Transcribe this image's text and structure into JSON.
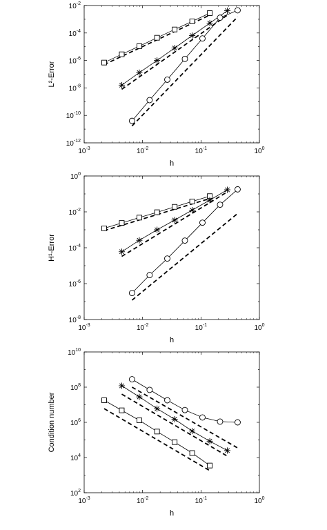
{
  "chart_data": [
    {
      "type": "line",
      "xscale": "log",
      "yscale": "log",
      "xlabel": "h",
      "ylabel": "L²-Error",
      "xlim": [
        0.001,
        1
      ],
      "ylim": [
        1e-12,
        0.01
      ],
      "xticks": [
        {
          "value": 0.001,
          "base": "10",
          "exp": "-3"
        },
        {
          "value": 0.01,
          "base": "10",
          "exp": "-2"
        },
        {
          "value": 0.1,
          "base": "10",
          "exp": "-1"
        },
        {
          "value": 1,
          "base": "10",
          "exp": "0"
        }
      ],
      "yticks": [
        {
          "value": 1e-12,
          "base": "10",
          "exp": "-12"
        },
        {
          "value": 1e-10,
          "base": "10",
          "exp": "-10"
        },
        {
          "value": 1e-08,
          "base": "10",
          "exp": "-8"
        },
        {
          "value": 1e-06,
          "base": "10",
          "exp": "-6"
        },
        {
          "value": 0.0001,
          "base": "10",
          "exp": "-4"
        },
        {
          "value": 0.01,
          "base": "10",
          "exp": "-2"
        }
      ],
      "series": [
        {
          "marker": "square",
          "x": [
            0.0022,
            0.0044,
            0.0088,
            0.0177,
            0.0354,
            0.0707,
            0.1414
          ],
          "y": [
            7e-07,
            2.8e-06,
            1.1e-05,
            4.5e-05,
            0.00018,
            0.0007,
            0.0028
          ]
        },
        {
          "marker": "asterisk",
          "x": [
            0.0044,
            0.0088,
            0.0177,
            0.0354,
            0.0707,
            0.1414,
            0.2828
          ],
          "y": [
            1.6e-08,
            1.3e-07,
            1e-06,
            8e-06,
            6.5e-05,
            0.00052,
            0.0042
          ]
        },
        {
          "marker": "circle",
          "x": [
            0.0066,
            0.0132,
            0.0265,
            0.053,
            0.106,
            0.212,
            0.424
          ],
          "y": [
            4e-11,
            1.3e-09,
            4e-08,
            1.3e-06,
            4e-05,
            0.0013,
            0.0045
          ]
        }
      ],
      "reference_lines": [
        {
          "x": [
            0.0022,
            0.1414
          ],
          "y": [
            5e-07,
            0.002
          ]
        },
        {
          "x": [
            0.0044,
            0.2828
          ],
          "y": [
            8e-09,
            0.002
          ]
        },
        {
          "x": [
            0.0066,
            0.424
          ],
          "y": [
            1.7e-11,
            0.0015
          ]
        }
      ]
    },
    {
      "type": "line",
      "xscale": "log",
      "yscale": "log",
      "xlabel": "h",
      "ylabel": "H¹-Error",
      "xlim": [
        0.001,
        1
      ],
      "ylim": [
        1e-08,
        1
      ],
      "xticks": [
        {
          "value": 0.001,
          "base": "10",
          "exp": "-3"
        },
        {
          "value": 0.01,
          "base": "10",
          "exp": "-2"
        },
        {
          "value": 0.1,
          "base": "10",
          "exp": "-1"
        },
        {
          "value": 1,
          "base": "10",
          "exp": "0"
        }
      ],
      "yticks": [
        {
          "value": 1e-08,
          "base": "10",
          "exp": "-8"
        },
        {
          "value": 1e-06,
          "base": "10",
          "exp": "-6"
        },
        {
          "value": 0.0001,
          "base": "10",
          "exp": "-4"
        },
        {
          "value": 0.01,
          "base": "10",
          "exp": "-2"
        },
        {
          "value": 1,
          "base": "10",
          "exp": "0"
        }
      ],
      "series": [
        {
          "marker": "square",
          "x": [
            0.0022,
            0.0044,
            0.0088,
            0.0177,
            0.0354,
            0.0707,
            0.1414
          ],
          "y": [
            0.0012,
            0.0024,
            0.0048,
            0.0095,
            0.019,
            0.038,
            0.075
          ]
        },
        {
          "marker": "asterisk",
          "x": [
            0.0044,
            0.0088,
            0.0177,
            0.0354,
            0.0707,
            0.1414,
            0.2828
          ],
          "y": [
            6e-05,
            0.00026,
            0.001,
            0.0035,
            0.0125,
            0.045,
            0.17
          ]
        },
        {
          "marker": "circle",
          "x": [
            0.0066,
            0.0132,
            0.0265,
            0.053,
            0.106,
            0.212,
            0.424
          ],
          "y": [
            3e-07,
            3e-06,
            2.5e-05,
            0.00025,
            0.0025,
            0.025,
            0.18
          ]
        }
      ],
      "reference_lines": [
        {
          "x": [
            0.0022,
            0.1414
          ],
          "y": [
            0.0009,
            0.055
          ]
        },
        {
          "x": [
            0.0044,
            0.2828
          ],
          "y": [
            3.3e-05,
            0.13
          ]
        },
        {
          "x": [
            0.0066,
            0.424
          ],
          "y": [
            1.2e-07,
            0.0081
          ]
        }
      ]
    },
    {
      "type": "line",
      "xscale": "log",
      "yscale": "log",
      "xlabel": "h",
      "ylabel": "Condition number",
      "xlim": [
        0.001,
        1
      ],
      "ylim": [
        100,
        10000000000
      ],
      "xticks": [
        {
          "value": 0.001,
          "base": "10",
          "exp": "-3"
        },
        {
          "value": 0.01,
          "base": "10",
          "exp": "-2"
        },
        {
          "value": 0.1,
          "base": "10",
          "exp": "-1"
        },
        {
          "value": 1,
          "base": "10",
          "exp": "0"
        }
      ],
      "yticks": [
        {
          "value": 100,
          "base": "10",
          "exp": "2"
        },
        {
          "value": 10000,
          "base": "10",
          "exp": "4"
        },
        {
          "value": 1000000,
          "base": "10",
          "exp": "6"
        },
        {
          "value": 100000000,
          "base": "10",
          "exp": "8"
        },
        {
          "value": 10000000000,
          "base": "10",
          "exp": "10"
        }
      ],
      "series": [
        {
          "marker": "square",
          "x": [
            0.0022,
            0.0044,
            0.0088,
            0.0177,
            0.0354,
            0.0707,
            0.1414
          ],
          "y": [
            18000000,
            4800000,
            1300000,
            300000,
            75000,
            18000,
            3500
          ]
        },
        {
          "marker": "asterisk",
          "x": [
            0.0044,
            0.0088,
            0.0177,
            0.0354,
            0.0707,
            0.1414,
            0.2828
          ],
          "y": [
            120000000,
            28000000,
            6000000,
            1500000,
            320000,
            85000,
            25000
          ]
        },
        {
          "marker": "circle",
          "x": [
            0.0066,
            0.0132,
            0.0265,
            0.053,
            0.106,
            0.212,
            0.424
          ],
          "y": [
            280000000,
            70000000,
            18000000,
            5000000,
            1900000,
            1100000,
            1000000
          ]
        }
      ],
      "reference_lines": [
        {
          "x": [
            0.0022,
            0.1414
          ],
          "y": [
            6000000,
            1800
          ]
        },
        {
          "x": [
            0.0044,
            0.2828
          ],
          "y": [
            40000000,
            12000
          ]
        },
        {
          "x": [
            0.0066,
            0.424
          ],
          "y": [
            100000000,
            35000
          ]
        }
      ]
    }
  ]
}
